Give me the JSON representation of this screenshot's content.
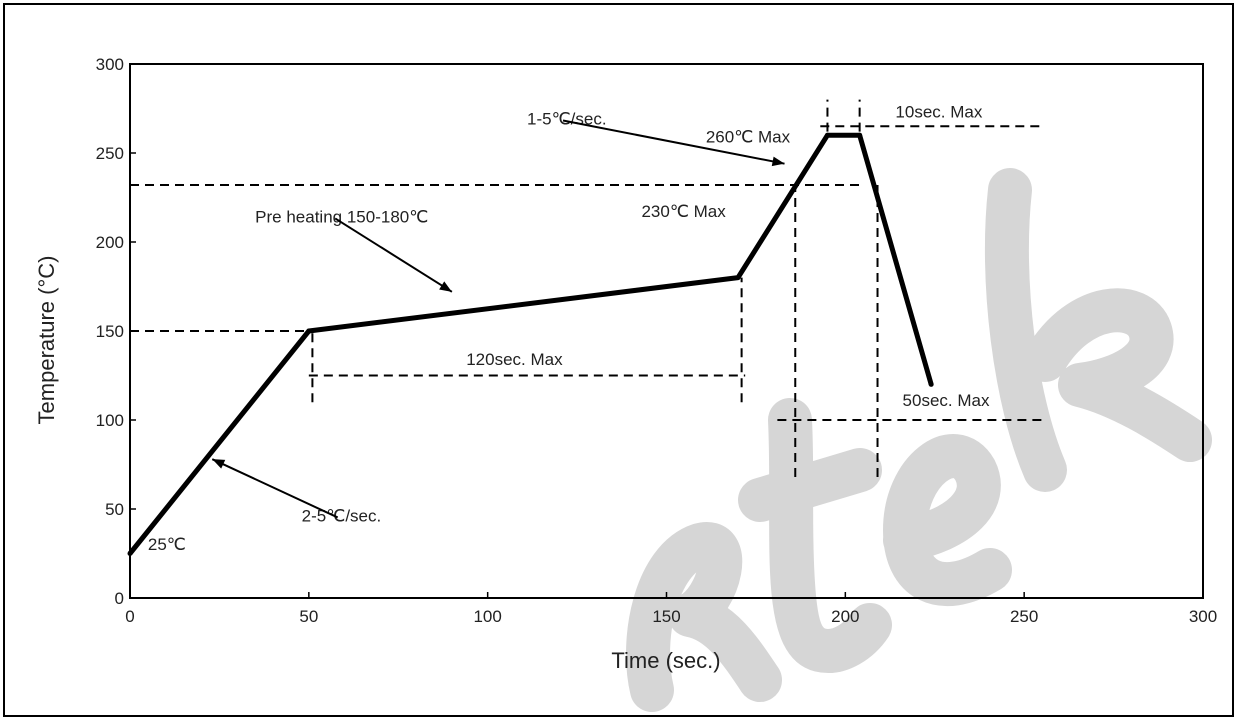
{
  "chart_data": {
    "type": "line",
    "xlabel": "Time (sec.)",
    "ylabel": "Temperature (°C)",
    "xlim": [
      0,
      300
    ],
    "ylim": [
      0,
      300
    ],
    "x_ticks": [
      0,
      50,
      100,
      150,
      200,
      250,
      300
    ],
    "y_ticks": [
      0,
      50,
      100,
      150,
      200,
      250,
      300
    ],
    "grid": false,
    "series": [
      {
        "x": [
          0,
          50,
          170,
          195,
          204,
          224
        ],
        "y": [
          25,
          150,
          180,
          260,
          260,
          120
        ]
      }
    ],
    "reference_lines": [
      {
        "orientation": "horizontal",
        "y": 150,
        "x_from": 0,
        "x_to": 50
      },
      {
        "orientation": "horizontal",
        "y": 232,
        "x_from": 0,
        "x_to": 204
      },
      {
        "orientation": "horizontal",
        "y": 125,
        "x_from": 50,
        "x_to": 172
      },
      {
        "orientation": "horizontal",
        "y": 265,
        "x_from": 193,
        "x_to": 255
      },
      {
        "orientation": "horizontal",
        "y": 100,
        "x_from": 181,
        "x_to": 255
      },
      {
        "orientation": "vertical",
        "x": 51,
        "y_from": 110,
        "y_to": 150
      },
      {
        "orientation": "vertical",
        "x": 171,
        "y_from": 110,
        "y_to": 180
      },
      {
        "orientation": "vertical",
        "x": 186,
        "y_from": 68,
        "y_to": 232
      },
      {
        "orientation": "vertical",
        "x": 209,
        "y_from": 68,
        "y_to": 232
      },
      {
        "orientation": "vertical",
        "x": 195,
        "y_from": 262,
        "y_to": 280
      },
      {
        "orientation": "vertical",
        "x": 204,
        "y_from": 262,
        "y_to": 280
      }
    ],
    "annotations": [
      {
        "text": "25℃",
        "x": 5,
        "y": 27
      },
      {
        "text": "2-5℃/sec.",
        "x": 48,
        "y": 43,
        "arrow_to": [
          23,
          78
        ]
      },
      {
        "text": "Pre heating 150-180℃",
        "x": 35,
        "y": 211,
        "arrow_to": [
          90,
          172
        ]
      },
      {
        "text": "120sec. Max",
        "x": 94,
        "y": 131
      },
      {
        "text": "1-5℃/sec.",
        "x": 111,
        "y": 266,
        "arrow_to": [
          183,
          244
        ]
      },
      {
        "text": "230℃ Max",
        "x": 143,
        "y": 214
      },
      {
        "text": "260℃ Max",
        "x": 161,
        "y": 256
      },
      {
        "text": "10sec. Max",
        "x": 214,
        "y": 270
      },
      {
        "text": "50sec. Max",
        "x": 216,
        "y": 108
      }
    ],
    "watermark": "ktek"
  }
}
